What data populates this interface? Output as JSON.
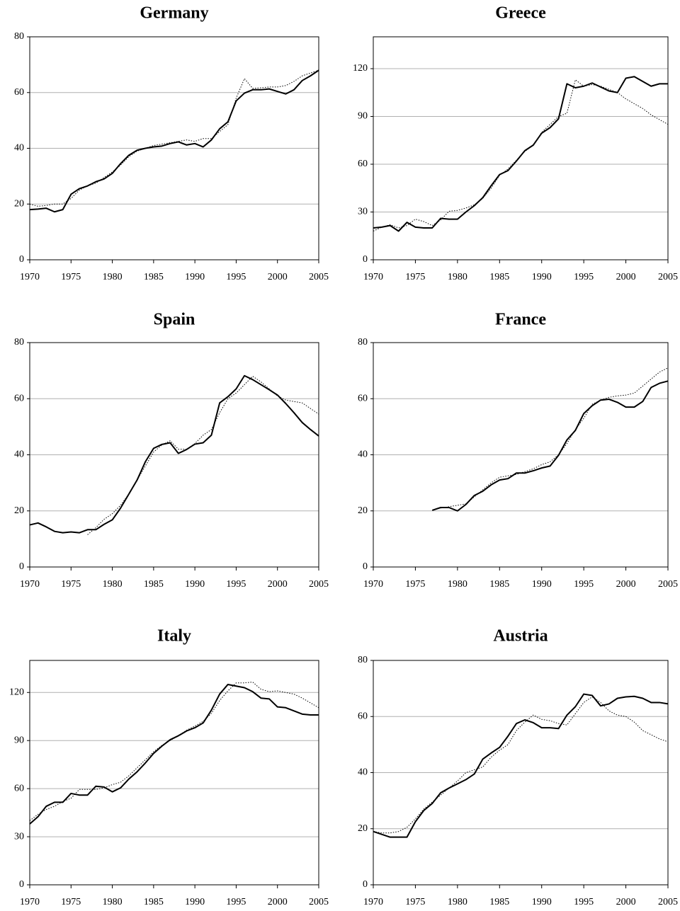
{
  "chart_data": [
    {
      "type": "line",
      "title": "Germany",
      "x": [
        1970,
        1971,
        1972,
        1973,
        1974,
        1975,
        1976,
        1977,
        1978,
        1979,
        1980,
        1981,
        1982,
        1983,
        1984,
        1985,
        1986,
        1987,
        1988,
        1989,
        1990,
        1991,
        1992,
        1993,
        1994,
        1995,
        1996,
        1997,
        1998,
        1999,
        2000,
        2001,
        2002,
        2003,
        2004,
        2005
      ],
      "xlim": [
        1970,
        2005
      ],
      "xticks": [
        1970,
        1975,
        1980,
        1985,
        1990,
        1995,
        2000,
        2005
      ],
      "ylim": [
        0,
        80
      ],
      "yticks": [
        0,
        20,
        40,
        60,
        80
      ],
      "grid": true,
      "series": [
        {
          "color": "#000000",
          "style": "solid",
          "values": [
            18,
            18.2,
            18.5,
            17.2,
            18,
            23.5,
            25.5,
            26.5,
            28,
            29,
            31,
            34.5,
            37.5,
            39.3,
            40,
            40.5,
            40.8,
            41.7,
            42.3,
            41.2,
            41.7,
            40.5,
            43,
            47,
            49.5,
            57,
            59.8,
            61,
            61,
            61.3,
            60.4,
            59.5,
            61,
            64.3,
            66,
            68
          ]
        },
        {
          "color": "#000000",
          "style": "dotted",
          "values": [
            20,
            19.2,
            19.5,
            20,
            20,
            22,
            25,
            26.5,
            27.5,
            29.5,
            31.5,
            34,
            37,
            39,
            40,
            41,
            41.5,
            42,
            42.5,
            43,
            42.5,
            43.5,
            43.5,
            46,
            48.5,
            58,
            65,
            61.5,
            61.7,
            62,
            62,
            62.5,
            64,
            66,
            67,
            68
          ]
        }
      ]
    },
    {
      "type": "line",
      "title": "Greece",
      "x": [
        1970,
        1971,
        1972,
        1973,
        1974,
        1975,
        1976,
        1977,
        1978,
        1979,
        1980,
        1981,
        1982,
        1983,
        1984,
        1985,
        1986,
        1987,
        1988,
        1989,
        1990,
        1991,
        1992,
        1993,
        1994,
        1995,
        1996,
        1997,
        1998,
        1999,
        2000,
        2001,
        2002,
        2003,
        2004,
        2005
      ],
      "xlim": [
        1970,
        2005
      ],
      "xticks": [
        1970,
        1975,
        1980,
        1985,
        1990,
        1995,
        2000,
        2005
      ],
      "ylim": [
        0,
        140
      ],
      "yticks": [
        0,
        30,
        60,
        90,
        120
      ],
      "grid": true,
      "series": [
        {
          "color": "#000000",
          "style": "solid",
          "values": [
            20,
            20.5,
            21.5,
            18,
            23.5,
            20.5,
            20,
            20,
            26,
            25.5,
            25.5,
            30,
            34,
            39,
            46.5,
            53.5,
            56,
            62,
            68.5,
            72,
            79.5,
            83,
            88.5,
            110.5,
            108,
            109,
            111,
            108.5,
            106,
            105,
            114,
            115,
            112,
            109,
            110.5,
            110.5
          ]
        },
        {
          "color": "#000000",
          "style": "dotted",
          "values": [
            18,
            20.5,
            22,
            20,
            21.5,
            25.5,
            24,
            21.5,
            25,
            30.5,
            31,
            32.5,
            34.5,
            38.5,
            45,
            53,
            57,
            62.5,
            68,
            72,
            80,
            85,
            90,
            92,
            113,
            109,
            110,
            109,
            107,
            105,
            101,
            98,
            95,
            91,
            88,
            85
          ]
        }
      ]
    },
    {
      "type": "line",
      "title": "Spain",
      "x": [
        1970,
        1971,
        1972,
        1973,
        1974,
        1975,
        1976,
        1977,
        1978,
        1979,
        1980,
        1981,
        1982,
        1983,
        1984,
        1985,
        1986,
        1987,
        1988,
        1989,
        1990,
        1991,
        1992,
        1993,
        1994,
        1995,
        1996,
        1997,
        1998,
        1999,
        2000,
        2001,
        2002,
        2003,
        2004,
        2005
      ],
      "xlim": [
        1970,
        2005
      ],
      "xticks": [
        1970,
        1975,
        1980,
        1985,
        1990,
        1995,
        2000,
        2005
      ],
      "ylim": [
        0,
        80
      ],
      "yticks": [
        0,
        20,
        40,
        60,
        80
      ],
      "grid": true,
      "series": [
        {
          "color": "#000000",
          "style": "solid",
          "values": [
            15,
            15.7,
            14.3,
            12.7,
            12.2,
            12.5,
            12.2,
            13.3,
            13.3,
            15.2,
            16.8,
            21,
            26,
            31,
            37.5,
            42.3,
            43.7,
            44.3,
            40.5,
            41.9,
            43.8,
            44.3,
            47,
            58.5,
            60.7,
            63.5,
            68.2,
            66.8,
            65,
            63.2,
            61.3,
            58.3,
            55,
            51.5,
            49,
            46.7
          ]
        },
        {
          "color": "#000000",
          "style": "dotted",
          "values": [
            null,
            null,
            null,
            null,
            null,
            null,
            null,
            11.5,
            14,
            17,
            19,
            22,
            26,
            31,
            36,
            41,
            43.5,
            45,
            42,
            42,
            44,
            47,
            49,
            55,
            60,
            62,
            65,
            68,
            66,
            63.5,
            61,
            59.5,
            59,
            58.5,
            56.5,
            54.5
          ]
        }
      ]
    },
    {
      "type": "line",
      "title": "France",
      "x": [
        1970,
        1971,
        1972,
        1973,
        1974,
        1975,
        1976,
        1977,
        1978,
        1979,
        1980,
        1981,
        1982,
        1983,
        1984,
        1985,
        1986,
        1987,
        1988,
        1989,
        1990,
        1991,
        1992,
        1993,
        1994,
        1995,
        1996,
        1997,
        1998,
        1999,
        2000,
        2001,
        2002,
        2003,
        2004,
        2005
      ],
      "xlim": [
        1970,
        2005
      ],
      "xticks": [
        1970,
        1975,
        1980,
        1985,
        1990,
        1995,
        2000,
        2005
      ],
      "ylim": [
        0,
        80
      ],
      "yticks": [
        0,
        20,
        40,
        60,
        80
      ],
      "grid": true,
      "series": [
        {
          "color": "#000000",
          "style": "solid",
          "values": [
            null,
            null,
            null,
            null,
            null,
            null,
            null,
            20.2,
            21.2,
            21.2,
            20,
            22.3,
            25.5,
            27,
            29.3,
            31,
            31.5,
            33.5,
            33.5,
            34.3,
            35.3,
            36,
            39.8,
            45.3,
            48.7,
            54.7,
            57.5,
            59.5,
            59.8,
            58.7,
            57,
            57,
            59,
            64,
            65.5,
            66.3
          ]
        },
        {
          "color": "#000000",
          "style": "dotted",
          "values": [
            null,
            null,
            null,
            null,
            null,
            null,
            null,
            null,
            21,
            21.5,
            22,
            22.5,
            25,
            27.5,
            30,
            32,
            32.5,
            33,
            34,
            35,
            36.5,
            37.5,
            40,
            44,
            49,
            53,
            58,
            59.5,
            60.5,
            61,
            61.3,
            62,
            64.5,
            67,
            69.5,
            71
          ]
        }
      ]
    },
    {
      "type": "line",
      "title": "Italy",
      "x": [
        1970,
        1971,
        1972,
        1973,
        1974,
        1975,
        1976,
        1977,
        1978,
        1979,
        1980,
        1981,
        1982,
        1983,
        1984,
        1985,
        1986,
        1987,
        1988,
        1989,
        1990,
        1991,
        1992,
        1993,
        1994,
        1995,
        1996,
        1997,
        1998,
        1999,
        2000,
        2001,
        2002,
        2003,
        2004,
        2005
      ],
      "xlim": [
        1970,
        2005
      ],
      "xticks": [
        1970,
        1975,
        1980,
        1985,
        1990,
        1995,
        2000,
        2005
      ],
      "ylim": [
        0,
        140
      ],
      "yticks": [
        0,
        30,
        60,
        90,
        120
      ],
      "grid": true,
      "series": [
        {
          "color": "#000000",
          "style": "solid",
          "values": [
            38,
            42.5,
            49,
            51.5,
            51.5,
            57,
            56,
            56,
            61.5,
            61,
            58,
            60.5,
            66,
            70.5,
            76,
            82,
            86.5,
            90.5,
            93,
            96,
            98,
            101,
            109,
            119,
            125,
            124,
            123,
            120.5,
            116.5,
            116,
            111,
            110.5,
            108.5,
            106.5,
            106,
            106
          ]
        },
        {
          "color": "#000000",
          "style": "dotted",
          "values": [
            40,
            44,
            47,
            49,
            52,
            54,
            59.5,
            59.5,
            59.5,
            60.5,
            62.5,
            64,
            68,
            73,
            78,
            83,
            87,
            90,
            93,
            96.5,
            99,
            102,
            107,
            115,
            121,
            126,
            126,
            126.5,
            122,
            120.5,
            121,
            120,
            119,
            116.5,
            113.5,
            110.5
          ]
        }
      ]
    },
    {
      "type": "line",
      "title": "Austria",
      "x": [
        1970,
        1971,
        1972,
        1973,
        1974,
        1975,
        1976,
        1977,
        1978,
        1979,
        1980,
        1981,
        1982,
        1983,
        1984,
        1985,
        1986,
        1987,
        1988,
        1989,
        1990,
        1991,
        1992,
        1993,
        1994,
        1995,
        1996,
        1997,
        1998,
        1999,
        2000,
        2001,
        2002,
        2003,
        2004,
        2005
      ],
      "xlim": [
        1970,
        2005
      ],
      "xticks": [
        1970,
        1975,
        1980,
        1985,
        1990,
        1995,
        2000,
        2005
      ],
      "ylim": [
        0,
        80
      ],
      "yticks": [
        0,
        20,
        40,
        60,
        80
      ],
      "grid": true,
      "series": [
        {
          "color": "#000000",
          "style": "solid",
          "values": [
            19,
            18,
            17,
            17,
            17,
            22.5,
            26.5,
            29,
            32.8,
            34.5,
            36,
            37.5,
            39.5,
            44.8,
            47,
            49,
            53,
            57.5,
            58.8,
            57.8,
            56,
            56,
            55.7,
            60.5,
            63.5,
            68,
            67.5,
            63.8,
            64.5,
            66.5,
            67,
            67.2,
            66.5,
            65,
            65,
            64.5
          ]
        },
        {
          "color": "#000000",
          "style": "dotted",
          "values": [
            19,
            18.5,
            18.5,
            19,
            20.5,
            23.5,
            27,
            29.5,
            32,
            34.5,
            37,
            40,
            41,
            42,
            45.5,
            48,
            50,
            55,
            58,
            60.5,
            59,
            58.5,
            57.5,
            57,
            61,
            65,
            67,
            65,
            62,
            60.5,
            60,
            58,
            55,
            53.5,
            52,
            51
          ]
        }
      ]
    }
  ]
}
